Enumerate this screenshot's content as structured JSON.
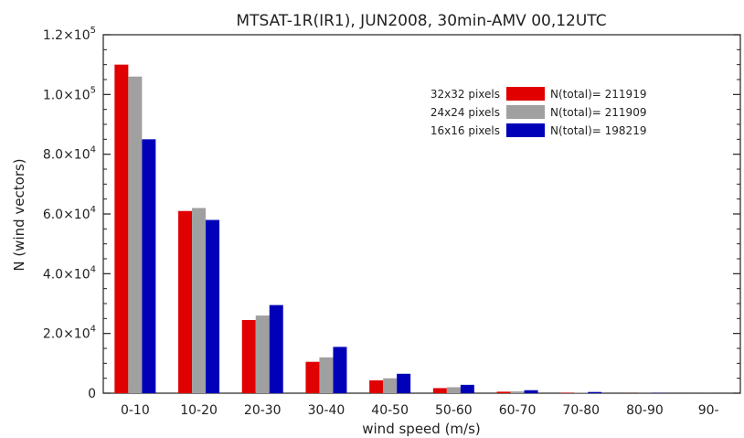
{
  "chart_data": {
    "type": "bar",
    "title": "MTSAT-1R(IR1), JUN2008, 30min-AMV 00,12UTC",
    "xlabel": "wind speed (m/s)",
    "ylabel": "N (wind vectors)",
    "categories": [
      "0-10",
      "10-20",
      "20-30",
      "30-40",
      "40-50",
      "50-60",
      "60-70",
      "70-80",
      "80-90",
      "90-"
    ],
    "ylim": [
      0,
      120000
    ],
    "y_ticks": [
      {
        "value": 0,
        "label": "0"
      },
      {
        "value": 20000,
        "mantissa": "2.0",
        "exp": "4"
      },
      {
        "value": 40000,
        "mantissa": "4.0",
        "exp": "4"
      },
      {
        "value": 60000,
        "mantissa": "6.0",
        "exp": "4"
      },
      {
        "value": 80000,
        "mantissa": "8.0",
        "exp": "4"
      },
      {
        "value": 100000,
        "mantissa": "1.0",
        "exp": "5"
      },
      {
        "value": 120000,
        "mantissa": "1.2",
        "exp": "5"
      }
    ],
    "legend_position": "top-right",
    "grid": false,
    "series": [
      {
        "name": "32x32 pixels",
        "total_label": "N(total)= 211919",
        "color": "#e00000",
        "values": [
          110000,
          61000,
          24500,
          10500,
          4300,
          1700,
          500,
          150,
          30,
          10
        ]
      },
      {
        "name": "24x24 pixels",
        "total_label": "N(total)= 211909",
        "color": "#a0a0a0",
        "values": [
          106000,
          62000,
          26000,
          12000,
          5000,
          2000,
          600,
          200,
          40,
          10
        ]
      },
      {
        "name": "16x16 pixels",
        "total_label": "N(total)= 198219",
        "color": "#0000b8",
        "values": [
          85000,
          58000,
          29500,
          15500,
          6500,
          2800,
          1000,
          400,
          80,
          20
        ]
      }
    ]
  }
}
